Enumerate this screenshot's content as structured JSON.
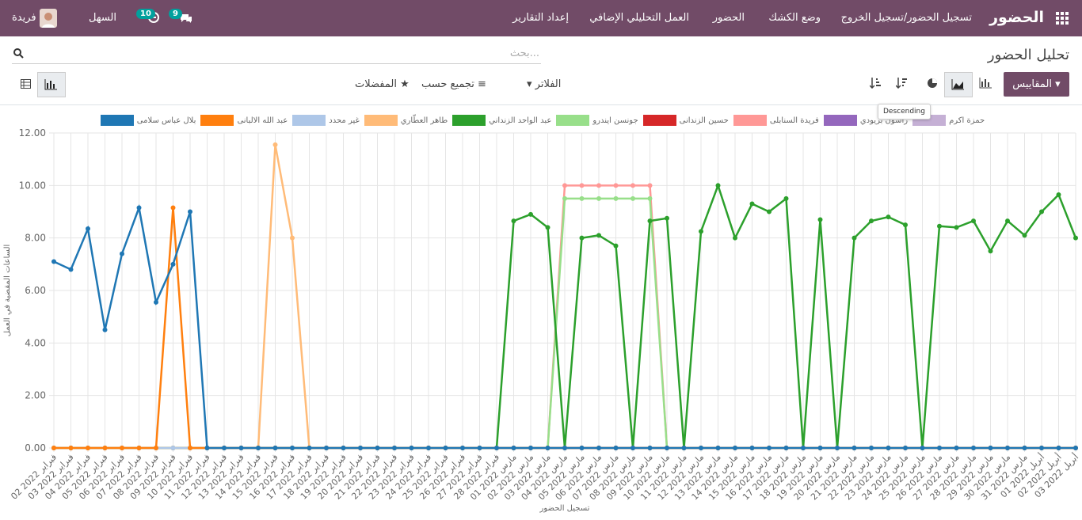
{
  "navbar": {
    "app_name": "الحضور",
    "menu": [
      "تسجيل الحضور/تسجيل الخروج",
      "وضع الكشك",
      "الحضور",
      "العمل التحليلي الإضافي",
      "إعداد التقارير"
    ],
    "messages_badge": 9,
    "activities_badge": 10,
    "company": "السهل",
    "user": "فريدة"
  },
  "control_panel": {
    "title": "تحليل الحضور",
    "search_placeholder": "بحث...",
    "measures": "المقاييس",
    "filters": "الفلاتر",
    "group_by": "تجميع حسب",
    "favorites": "المفضلات",
    "tooltip": "Descending"
  },
  "chart_data": {
    "type": "line",
    "x_label": "تسجيل الحضور",
    "y_label": "الساعات المقضية في العمل",
    "categories": [
      "02 فبراير 2022",
      "03 فبراير 2022",
      "04 فبراير 2022",
      "05 فبراير 2022",
      "06 فبراير 2022",
      "07 فبراير 2022",
      "08 فبراير 2022",
      "09 فبراير 2022",
      "10 فبراير 2022",
      "11 فبراير 2022",
      "12 فبراير 2022",
      "13 فبراير 2022",
      "14 فبراير 2022",
      "15 فبراير 2022",
      "16 فبراير 2022",
      "17 فبراير 2022",
      "18 فبراير 2022",
      "19 فبراير 2022",
      "20 فبراير 2022",
      "21 فبراير 2022",
      "22 فبراير 2022",
      "23 فبراير 2022",
      "24 فبراير 2022",
      "25 فبراير 2022",
      "26 فبراير 2022",
      "27 فبراير 2022",
      "28 فبراير 2022",
      "01 مارس 2022",
      "02 مارس 2022",
      "03 مارس 2022",
      "04 مارس 2022",
      "05 مارس 2022",
      "06 مارس 2022",
      "07 مارس 2022",
      "08 مارس 2022",
      "09 مارس 2022",
      "10 مارس 2022",
      "11 مارس 2022",
      "12 مارس 2022",
      "13 مارس 2022",
      "14 مارس 2022",
      "15 مارس 2022",
      "16 مارس 2022",
      "17 مارس 2022",
      "18 مارس 2022",
      "19 مارس 2022",
      "20 مارس 2022",
      "21 مارس 2022",
      "22 مارس 2022",
      "23 مارس 2022",
      "24 مارس 2022",
      "25 مارس 2022",
      "26 مارس 2022",
      "27 مارس 2022",
      "28 مارس 2022",
      "29 مارس 2022",
      "30 مارس 2022",
      "31 مارس 2022",
      "01 أبريل 2022",
      "02 أبريل 2022",
      "03 أبريل 2022"
    ],
    "ylim": [
      0,
      12
    ],
    "yticks": [
      {
        "value": 0,
        "label": "0.00"
      },
      {
        "value": 2,
        "label": "2.00"
      },
      {
        "value": 4,
        "label": "4.00"
      },
      {
        "value": 6,
        "label": "6.00"
      },
      {
        "value": 8,
        "label": "8.00"
      },
      {
        "value": 10,
        "label": "10.00"
      },
      {
        "value": 12,
        "label": "12.00"
      }
    ],
    "grid": true,
    "series": [
      {
        "name": "بلال عباس سلامى",
        "color": "#1f77b4",
        "values": [
          7.1,
          6.8,
          8.35,
          4.5,
          7.4,
          9.15,
          5.55,
          7.0,
          9.0,
          0,
          0,
          0,
          0,
          0,
          0,
          0,
          0,
          0,
          0,
          0,
          0,
          0,
          0,
          0,
          0,
          0,
          0,
          0,
          0,
          0,
          0,
          0,
          0,
          0,
          0,
          0,
          0,
          0,
          0,
          0,
          0,
          0,
          0,
          0,
          0,
          0,
          0,
          0,
          0,
          0,
          0,
          0,
          0,
          0,
          0,
          0,
          0,
          0,
          0,
          0,
          0
        ]
      },
      {
        "name": "عبد الله الالبانى",
        "color": "#ff7f0e",
        "values": [
          0,
          0,
          0,
          0,
          0,
          0,
          0,
          9.15,
          0,
          0,
          0,
          0,
          0,
          0,
          0,
          0,
          0,
          0,
          0,
          0,
          0,
          0,
          0,
          0,
          0,
          0,
          0,
          0,
          0,
          0,
          0,
          0,
          0,
          0,
          0,
          0,
          0,
          0,
          0,
          0,
          0,
          0,
          0,
          0,
          0,
          0,
          0,
          0,
          0,
          0,
          0,
          0,
          0,
          0,
          0,
          0,
          0,
          0,
          0,
          0,
          0
        ]
      },
      {
        "name": "غير محدد",
        "color": "#aec7e8",
        "values": [
          0,
          0,
          0,
          0,
          0,
          0,
          0,
          0,
          0,
          0,
          0,
          0,
          0,
          0,
          0,
          0,
          0,
          0,
          0,
          0,
          0,
          0,
          0,
          0,
          0,
          0,
          0,
          0,
          0,
          0,
          0,
          0,
          0,
          0,
          0,
          0,
          0,
          0,
          0,
          0,
          0,
          0,
          0,
          0,
          0,
          0,
          0,
          0,
          0,
          0,
          0,
          0,
          0,
          0,
          0,
          0,
          0,
          0,
          0,
          0,
          0
        ]
      },
      {
        "name": "طاهر العطّاري",
        "color": "#ffbb78",
        "values": [
          0,
          0,
          0,
          0,
          0,
          0,
          0,
          0,
          0,
          0,
          0,
          0,
          0,
          11.55,
          8.0,
          0,
          0,
          0,
          0,
          0,
          0,
          0,
          0,
          0,
          0,
          0,
          0,
          0,
          0,
          0,
          0,
          0,
          0,
          0,
          0,
          0,
          0,
          0,
          0,
          0,
          0,
          0,
          0,
          0,
          0,
          0,
          0,
          0,
          0,
          0,
          0,
          0,
          0,
          0,
          0,
          0,
          0,
          0,
          0,
          0,
          0
        ]
      },
      {
        "name": "عبد الواحد الزنداني",
        "color": "#2ca02c",
        "values": [
          0,
          0,
          0,
          0,
          0,
          0,
          0,
          0,
          0,
          0,
          0,
          0,
          0,
          0,
          0,
          0,
          0,
          0,
          0,
          0,
          0,
          0,
          0,
          0,
          0,
          0,
          0,
          8.65,
          8.9,
          8.4,
          0,
          8.0,
          8.1,
          7.7,
          0,
          8.65,
          8.75,
          0,
          8.25,
          10.0,
          8.0,
          9.3,
          9.0,
          9.5,
          0,
          8.7,
          0,
          8.0,
          8.65,
          8.8,
          8.5,
          0,
          8.45,
          8.4,
          8.65,
          7.5,
          8.65,
          8.1,
          9.0,
          9.65,
          8.0
        ]
      },
      {
        "name": "جونسن ايندرو",
        "color": "#98df8a",
        "values": [
          0,
          0,
          0,
          0,
          0,
          0,
          0,
          0,
          0,
          0,
          0,
          0,
          0,
          0,
          0,
          0,
          0,
          0,
          0,
          0,
          0,
          0,
          0,
          0,
          0,
          0,
          0,
          0,
          0,
          0,
          9.5,
          9.5,
          9.5,
          9.5,
          9.5,
          9.5,
          0,
          0,
          0,
          0,
          0,
          0,
          0,
          0,
          0,
          0,
          0,
          0,
          0,
          0,
          0,
          0,
          0,
          0,
          0,
          0,
          0,
          0,
          0,
          0,
          0
        ]
      },
      {
        "name": "حسين الزندانى",
        "color": "#d62728",
        "values": [
          0,
          0,
          0,
          0,
          0,
          0,
          0,
          0,
          0,
          0,
          0,
          0,
          0,
          0,
          0,
          0,
          0,
          0,
          0,
          0,
          0,
          0,
          0,
          0,
          0,
          0,
          0,
          0,
          0,
          0,
          0,
          0,
          0,
          0,
          0,
          0,
          0,
          0,
          0,
          0,
          0,
          0,
          0,
          0,
          0,
          0,
          0,
          0,
          0,
          0,
          0,
          0,
          0,
          0,
          0,
          0,
          0,
          0,
          0,
          0,
          0
        ]
      },
      {
        "name": "فريدة السنابلى",
        "color": "#ff9896",
        "values": [
          0,
          0,
          0,
          0,
          0,
          0,
          0,
          0,
          0,
          0,
          0,
          0,
          0,
          0,
          0,
          0,
          0,
          0,
          0,
          0,
          0,
          0,
          0,
          0,
          0,
          0,
          0,
          0,
          0,
          0,
          10.0,
          10.0,
          10.0,
          10.0,
          10.0,
          10.0,
          0,
          0,
          0,
          0,
          0,
          0,
          0,
          0,
          0,
          0,
          0,
          0,
          0,
          0,
          0,
          0,
          0,
          0,
          0,
          0,
          0,
          0,
          0,
          0,
          0
        ]
      },
      {
        "name": "راشون بريودي",
        "color": "#9467bd",
        "values": [
          0,
          0,
          0,
          0,
          0,
          0,
          0,
          0,
          0,
          0,
          0,
          0,
          0,
          0,
          0,
          0,
          0,
          0,
          0,
          0,
          0,
          0,
          0,
          0,
          0,
          0,
          0,
          0,
          0,
          0,
          0,
          0,
          0,
          0,
          0,
          0,
          0,
          0,
          0,
          0,
          0,
          0,
          0,
          0,
          0,
          0,
          0,
          0,
          0,
          0,
          0,
          0,
          0,
          0,
          0,
          0,
          0,
          0,
          0,
          0,
          0
        ]
      },
      {
        "name": "حمزة اكرم",
        "color": "#c5b0d5",
        "values": [
          0,
          0,
          0,
          0,
          0,
          0,
          0,
          0,
          0,
          0,
          0,
          0,
          0,
          0,
          0,
          0,
          0,
          0,
          0,
          0,
          0,
          0,
          0,
          0,
          0,
          0,
          0,
          0,
          0,
          0,
          0,
          0,
          0,
          0,
          0,
          0,
          0,
          0,
          0,
          0,
          0,
          0,
          0,
          0,
          0,
          0,
          0,
          0,
          0,
          0,
          0,
          0,
          0,
          0,
          0,
          0,
          0,
          0,
          0,
          0,
          0
        ]
      }
    ]
  }
}
